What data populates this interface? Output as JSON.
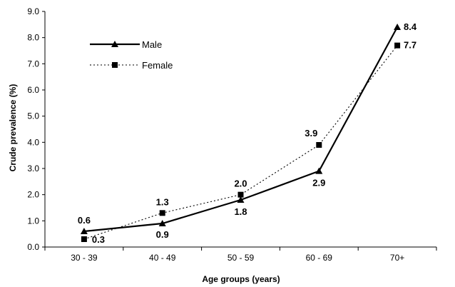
{
  "chart_data": {
    "type": "line",
    "categories": [
      "30 - 39",
      "40 - 49",
      "50 - 59",
      "60 - 69",
      "70+"
    ],
    "series": [
      {
        "name": "Male",
        "values": [
          0.6,
          0.9,
          1.8,
          2.9,
          8.4
        ],
        "labels": [
          "0.6",
          "0.9",
          "1.8",
          "2.9",
          "8.4"
        ],
        "line_style": "solid",
        "marker": "triangle",
        "color": "#000000"
      },
      {
        "name": "Female",
        "values": [
          0.3,
          1.3,
          2.0,
          3.9,
          7.7
        ],
        "labels": [
          "0.3",
          "1.3",
          "2.0",
          "3.9",
          "7.7"
        ],
        "line_style": "dotted",
        "marker": "square",
        "color": "#000000"
      }
    ],
    "xlabel": "Age groups (years)",
    "ylabel": "Crude prevalence (%)",
    "ylim": [
      0,
      9
    ],
    "yticks": [
      "0.0",
      "1.0",
      "2.0",
      "3.0",
      "4.0",
      "5.0",
      "6.0",
      "7.0",
      "8.0",
      "9.0"
    ],
    "grid": false,
    "legend_position": "top-left"
  }
}
